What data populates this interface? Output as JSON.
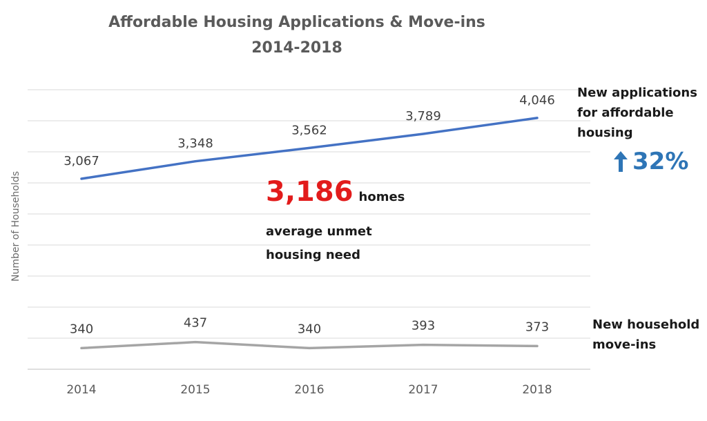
{
  "title_line1": "Affordable Housing Applications & Move-ins",
  "title_line2": "2014-2018",
  "ylabel": "Number of Households",
  "annotations": {
    "applications_label": "New applications for affordable housing",
    "applications_change": "32%",
    "applications_change_icon": "up-arrow-icon",
    "moveins_label": "New household move-ins",
    "unmet_value": "3,186",
    "unmet_unit": "homes",
    "unmet_desc": "average unmet housing need"
  },
  "colors": {
    "applications": "#4472c4",
    "moveins": "#a5a5a5",
    "highlight": "#e21b1b",
    "change": "#2e75b6",
    "grid": "#d9d9d9"
  },
  "chart_data": {
    "type": "line",
    "categories": [
      "2014",
      "2015",
      "2016",
      "2017",
      "2018"
    ],
    "series": [
      {
        "name": "New applications for affordable housing",
        "values": [
          3067,
          3348,
          3562,
          3789,
          4046
        ],
        "labels": [
          "3,067",
          "3,348",
          "3,562",
          "3,789",
          "4,046"
        ]
      },
      {
        "name": "New household move-ins",
        "values": [
          340,
          437,
          340,
          393,
          373
        ],
        "labels": [
          "340",
          "437",
          "340",
          "393",
          "373"
        ]
      }
    ],
    "title": "Affordable Housing Applications & Move-ins 2014-2018",
    "xlabel": "",
    "ylabel": "Number of Households",
    "ylim": [
      0,
      4500
    ],
    "grid": true,
    "tick_labels_y": false
  }
}
